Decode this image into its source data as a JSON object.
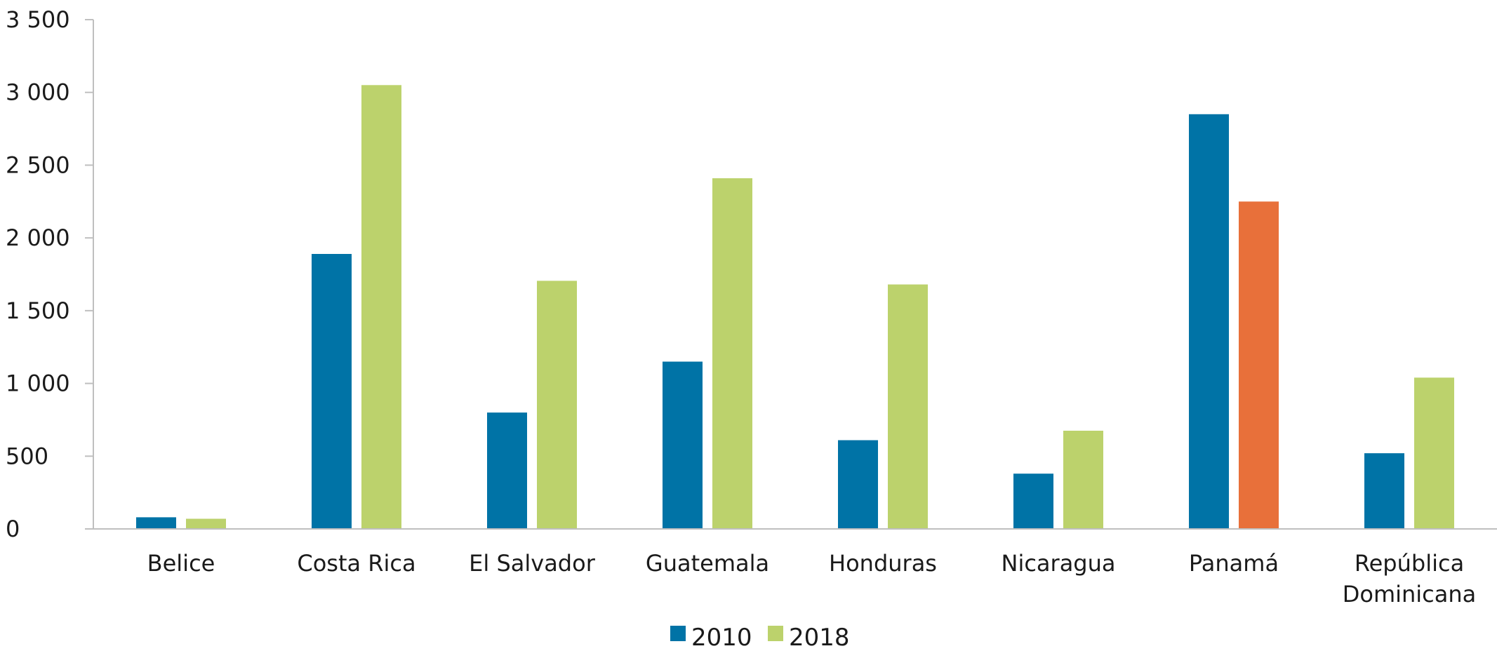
{
  "chart_data": {
    "type": "bar",
    "categories": [
      [
        "Belice"
      ],
      [
        "Costa Rica"
      ],
      [
        "El Salvador"
      ],
      [
        "Guatemala"
      ],
      [
        "Honduras"
      ],
      [
        "Nicaragua"
      ],
      [
        "Panamá"
      ],
      [
        "República",
        "Dominicana"
      ]
    ],
    "series": [
      {
        "name": "2010",
        "color": "#0073a6",
        "values": [
          80,
          1890,
          800,
          1150,
          610,
          380,
          2850,
          520
        ]
      },
      {
        "name": "2018",
        "color": "#bcd26c",
        "values": [
          70,
          3050,
          1705,
          2410,
          1680,
          675,
          2250,
          1040
        ],
        "highlight": {
          "index": 6,
          "color": "#e8703a"
        }
      }
    ],
    "ylim": [
      0,
      3500
    ],
    "yticks": [
      0,
      500,
      1000,
      1500,
      2000,
      2500,
      3000,
      3500
    ],
    "ytick_labels": [
      "0",
      "500",
      "1 000",
      "1 500",
      "2 000",
      "2 500",
      "3 000",
      "3 500"
    ],
    "grid": false,
    "legend_position": "bottom-center",
    "title": "",
    "xlabel": "",
    "ylabel": ""
  }
}
